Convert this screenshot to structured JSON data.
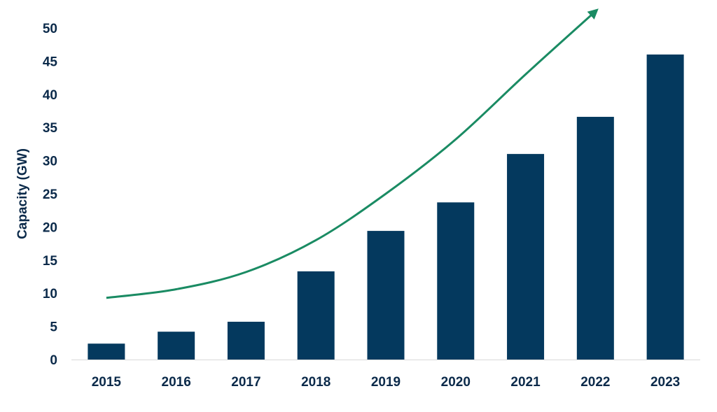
{
  "chart_data": {
    "type": "bar",
    "title": "",
    "xlabel": "",
    "ylabel": "Capacity (GW)",
    "categories": [
      "2015",
      "2016",
      "2017",
      "2018",
      "2019",
      "2020",
      "2021",
      "2022",
      "2023"
    ],
    "values": [
      2.4,
      4.2,
      5.7,
      13.3,
      19.4,
      23.7,
      31.0,
      36.6,
      46.0
    ],
    "ylim": [
      0,
      50
    ],
    "yticks": [
      "0",
      "5",
      "10",
      "15",
      "20",
      "25",
      "30",
      "35",
      "40",
      "45",
      "50"
    ],
    "grid": false,
    "legend": "none",
    "trend_arrow": {
      "type": "curve",
      "y": [
        9.3,
        10.6,
        13.2,
        18.0,
        25.0,
        33.2,
        43.0,
        52.5
      ]
    }
  },
  "colors": {
    "bar": "#04395e",
    "axis_text": "#0b2a4a",
    "trend": "#1a8b63",
    "axis_line": "#d9d9d9"
  }
}
